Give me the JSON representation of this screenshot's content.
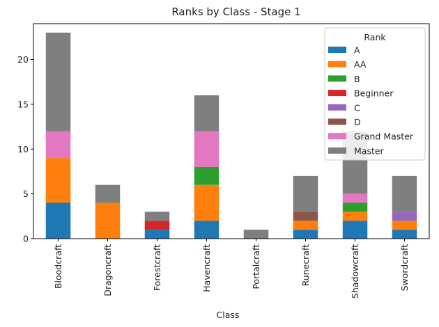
{
  "chart_data": {
    "type": "bar",
    "stacked": true,
    "title": "Ranks by Class - Stage 1",
    "xlabel": "Class",
    "ylabel": "",
    "ylim": [
      0,
      24
    ],
    "yticks": [
      0,
      5,
      10,
      15,
      20
    ],
    "grid": false,
    "legend_title": "Rank",
    "legend_position": "top-right",
    "categories": [
      "Bloodcraft",
      "Dragoncraft",
      "Forestcraft",
      "Havencraft",
      "Portalcraft",
      "Runecraft",
      "Shadowcraft",
      "Swordcraft"
    ],
    "series": [
      {
        "name": "A",
        "color": "#1f77b4",
        "values": [
          4,
          0,
          1,
          2,
          0,
          1,
          2,
          1
        ]
      },
      {
        "name": "AA",
        "color": "#ff7f0e",
        "values": [
          5,
          4,
          0,
          4,
          0,
          1,
          1,
          1
        ]
      },
      {
        "name": "B",
        "color": "#2ca02c",
        "values": [
          0,
          0,
          0,
          2,
          0,
          0,
          1,
          0
        ]
      },
      {
        "name": "Beginner",
        "color": "#d62728",
        "values": [
          0,
          0,
          1,
          0,
          0,
          0,
          0,
          0
        ]
      },
      {
        "name": "C",
        "color": "#9467bd",
        "values": [
          0,
          0,
          0,
          0,
          0,
          0,
          0,
          1
        ]
      },
      {
        "name": "D",
        "color": "#8c564b",
        "values": [
          0,
          0,
          0,
          0,
          0,
          1,
          0,
          0
        ]
      },
      {
        "name": "Grand Master",
        "color": "#e377c2",
        "values": [
          3,
          0,
          0,
          4,
          0,
          0,
          1,
          0
        ]
      },
      {
        "name": "Master",
        "color": "#7f7f7f",
        "values": [
          11,
          2,
          1,
          4,
          1,
          4,
          7,
          4
        ]
      }
    ]
  }
}
